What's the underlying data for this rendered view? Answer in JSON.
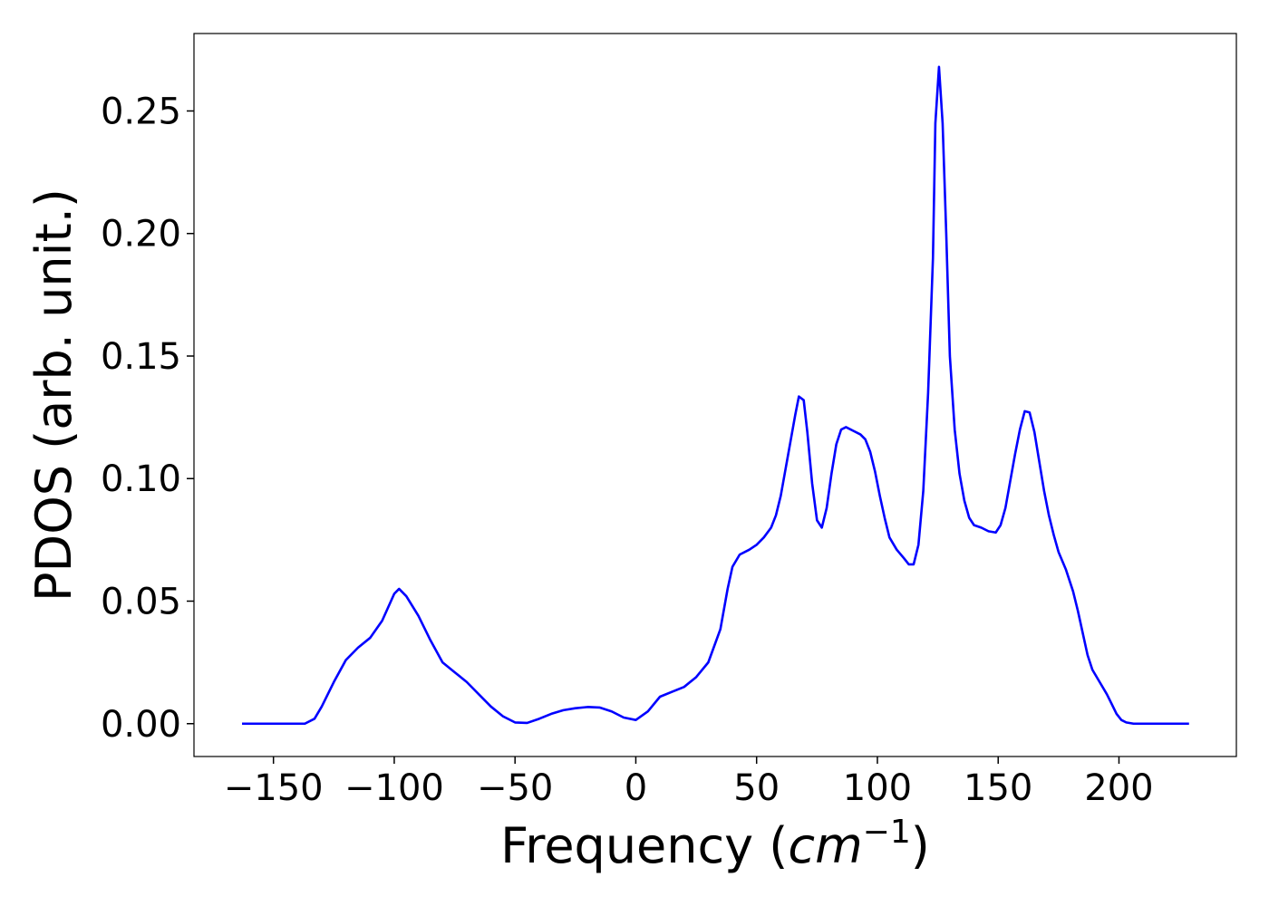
{
  "chart_data": {
    "type": "line",
    "x_label": [
      "Frequency (",
      "cm",
      "−1",
      ")"
    ],
    "y_label": "PDOS (arb. unit.)",
    "xlim": [
      -182.9,
      248.6
    ],
    "ylim": [
      -0.0134,
      0.2816
    ],
    "xticks": [
      {
        "value": -150,
        "label": "−150"
      },
      {
        "value": -100,
        "label": "−100"
      },
      {
        "value": -50,
        "label": "−50"
      },
      0,
      50,
      100,
      150,
      200
    ],
    "yticks": [
      {
        "value": 0,
        "label": "0.00"
      },
      {
        "value": 0.05,
        "label": "0.05"
      },
      {
        "value": 0.1,
        "label": "0.10"
      },
      {
        "value": 0.15,
        "label": "0.15"
      },
      {
        "value": 0.2,
        "label": "0.20"
      },
      {
        "value": 0.25,
        "label": "0.25"
      }
    ],
    "grid": false,
    "series": [
      {
        "color": "#0000ff",
        "x": [
          -163,
          -140,
          -137,
          -133,
          -130,
          -125,
          -120,
          -115,
          -110,
          -105,
          -100,
          -98,
          -95,
          -90,
          -85,
          -80,
          -75,
          -70,
          -65,
          -60,
          -55,
          -50,
          -45,
          -40,
          -35,
          -30,
          -25,
          -20,
          -15,
          -10,
          -5,
          0,
          5,
          10,
          15,
          20,
          25,
          30,
          35,
          38,
          40,
          43,
          47,
          50,
          53,
          56,
          58,
          60,
          62,
          64,
          66,
          67.5,
          69.5,
          71,
          73,
          75,
          77,
          79,
          81,
          83,
          85,
          87,
          90,
          93,
          95,
          97,
          99,
          101,
          103,
          105,
          108,
          111,
          113,
          115,
          117,
          119,
          121,
          123,
          124,
          125.5,
          127,
          128.5,
          130,
          132,
          134,
          136,
          138,
          140,
          143,
          146,
          149,
          151,
          153,
          155,
          157,
          159,
          161,
          163,
          165,
          167,
          169,
          171,
          173,
          175,
          178,
          181,
          183,
          185,
          187,
          189,
          192,
          195,
          197,
          199,
          201,
          203,
          206,
          229
        ],
        "values": [
          0,
          0,
          0,
          0.002,
          0.007,
          0.017,
          0.026,
          0.031,
          0.035,
          0.042,
          0.053,
          0.055,
          0.052,
          0.044,
          0.034,
          0.025,
          0.021,
          0.017,
          0.012,
          0.007,
          0.003,
          0.0005,
          0.0003,
          0.002,
          0.004,
          0.0055,
          0.0063,
          0.0068,
          0.0066,
          0.005,
          0.0025,
          0.0015,
          0.005,
          0.011,
          0.013,
          0.015,
          0.019,
          0.025,
          0.0385,
          0.055,
          0.064,
          0.069,
          0.071,
          0.073,
          0.076,
          0.08,
          0.085,
          0.093,
          0.104,
          0.115,
          0.126,
          0.1335,
          0.132,
          0.119,
          0.098,
          0.083,
          0.08,
          0.088,
          0.102,
          0.114,
          0.12,
          0.121,
          0.1195,
          0.118,
          0.116,
          0.111,
          0.103,
          0.093,
          0.084,
          0.076,
          0.071,
          0.0675,
          0.065,
          0.065,
          0.073,
          0.095,
          0.135,
          0.19,
          0.245,
          0.268,
          0.245,
          0.2,
          0.15,
          0.12,
          0.102,
          0.091,
          0.084,
          0.081,
          0.08,
          0.0785,
          0.078,
          0.081,
          0.088,
          0.099,
          0.11,
          0.12,
          0.1275,
          0.127,
          0.119,
          0.107,
          0.095,
          0.085,
          0.077,
          0.07,
          0.063,
          0.054,
          0.046,
          0.037,
          0.028,
          0.022,
          0.017,
          0.012,
          0.008,
          0.004,
          0.0015,
          0.0005,
          0,
          0
        ]
      }
    ]
  }
}
